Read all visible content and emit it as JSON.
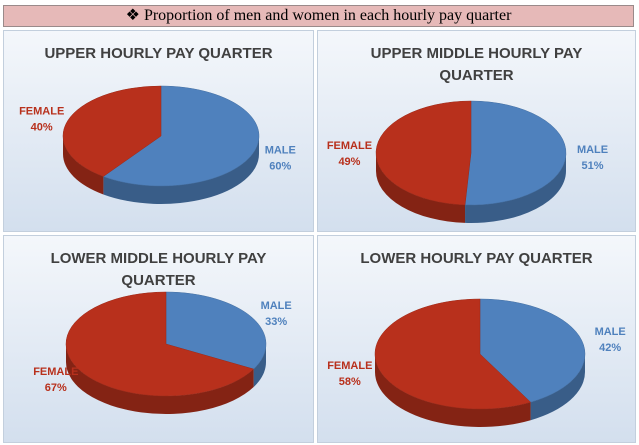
{
  "header": {
    "title": "❖ Proportion of men and women in each hourly pay quarter"
  },
  "chart_data": [
    {
      "type": "pie",
      "title": "UPPER HOURLY PAY QUARTER",
      "categories": [
        "MALE",
        "FEMALE"
      ],
      "values": [
        60,
        40
      ],
      "value_labels": [
        "60%",
        "40%"
      ],
      "colors": [
        "#4f81bd",
        "#b8301c"
      ]
    },
    {
      "type": "pie",
      "title": "UPPER MIDDLE HOURLY PAY QUARTER",
      "categories": [
        "MALE",
        "FEMALE"
      ],
      "values": [
        51,
        49
      ],
      "value_labels": [
        "51%",
        "49%"
      ],
      "colors": [
        "#4f81bd",
        "#b8301c"
      ]
    },
    {
      "type": "pie",
      "title": "LOWER MIDDLE HOURLY PAY QUARTER",
      "categories": [
        "MALE",
        "FEMALE"
      ],
      "values": [
        33,
        67
      ],
      "value_labels": [
        "33%",
        "67%"
      ],
      "colors": [
        "#4f81bd",
        "#b8301c"
      ]
    },
    {
      "type": "pie",
      "title": "LOWER HOURLY PAY QUARTER",
      "categories": [
        "MALE",
        "FEMALE"
      ],
      "values": [
        42,
        58
      ],
      "value_labels": [
        "42%",
        "58%"
      ],
      "colors": [
        "#4f81bd",
        "#b8301c"
      ]
    }
  ]
}
